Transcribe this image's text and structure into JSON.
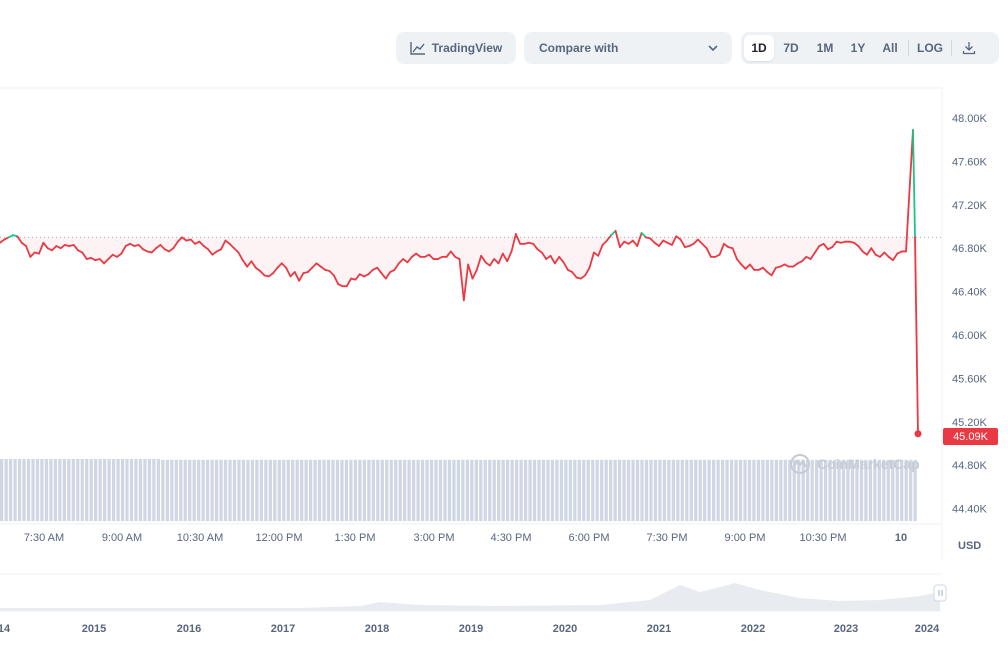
{
  "toolbar": {
    "tradingview_label": "TradingView",
    "compare_label": "Compare with",
    "ranges": [
      "1D",
      "7D",
      "1M",
      "1Y",
      "All"
    ],
    "active_range": "1D",
    "log_label": "LOG"
  },
  "watermark": "CoinMarketCap",
  "currency": "USD",
  "colors": {
    "up": "#16c784",
    "down": "#ea3943",
    "volume": "#cfd6e4",
    "grid": "#eff2f5"
  },
  "chart_data": {
    "type": "line",
    "title": "",
    "xlabel": "",
    "ylabel": "",
    "x_ticks": [
      "7:30 AM",
      "9:00 AM",
      "10:30 AM",
      "12:00 PM",
      "1:30 PM",
      "3:00 PM",
      "4:30 PM",
      "6:00 PM",
      "7:30 PM",
      "9:00 PM",
      "10:30 PM",
      "10"
    ],
    "y_ticks": [
      "48.00K",
      "47.60K",
      "47.20K",
      "46.80K",
      "46.40K",
      "46.00K",
      "45.60K",
      "45.20K",
      "44.80K",
      "44.40K"
    ],
    "ylim": [
      44.35,
      48.15
    ],
    "reference_price": 46.9,
    "current_price_label": "45.09K",
    "current_price": 45.09,
    "series": [
      {
        "values": [
          46.85,
          46.88,
          46.9,
          46.92,
          46.91,
          46.85,
          46.82,
          46.72,
          46.76,
          46.75,
          46.85,
          46.8,
          46.78,
          46.82,
          46.8,
          46.83,
          46.82,
          46.83,
          46.78,
          46.76,
          46.7,
          46.71,
          46.69,
          46.7,
          46.66,
          46.7,
          46.74,
          46.72,
          46.75,
          46.82,
          46.84,
          46.82,
          46.83,
          46.79,
          46.77,
          46.76,
          46.8,
          46.83,
          46.79,
          46.77,
          46.8,
          46.86,
          46.9,
          46.87,
          46.88,
          46.84,
          46.86,
          46.82,
          46.79,
          46.74,
          46.77,
          46.79,
          46.87,
          46.84,
          46.8,
          46.76,
          46.69,
          46.63,
          46.68,
          46.62,
          46.59,
          46.55,
          46.54,
          46.57,
          46.62,
          46.66,
          46.62,
          46.54,
          46.58,
          46.5,
          46.57,
          46.58,
          46.62,
          46.66,
          46.63,
          46.6,
          46.59,
          46.55,
          46.47,
          46.45,
          46.45,
          46.52,
          46.51,
          46.56,
          46.54,
          46.56,
          46.6,
          46.62,
          46.57,
          46.52,
          46.58,
          46.6,
          46.66,
          46.7,
          46.67,
          46.72,
          46.75,
          46.72,
          46.72,
          46.74,
          46.7,
          46.7,
          46.72,
          46.72,
          46.77,
          46.72,
          46.7,
          46.32,
          46.65,
          46.52,
          46.6,
          46.73,
          46.67,
          46.64,
          46.7,
          46.66,
          46.75,
          46.68,
          46.77,
          46.93,
          46.84,
          46.84,
          46.85,
          46.84,
          46.79,
          46.76,
          46.7,
          46.73,
          46.66,
          46.72,
          46.67,
          46.6,
          46.58,
          46.53,
          46.52,
          46.55,
          46.62,
          46.76,
          46.73,
          46.83,
          46.87,
          46.92,
          46.96,
          46.81,
          46.86,
          46.84,
          46.87,
          46.82,
          46.94,
          46.9,
          46.89,
          46.85,
          46.82,
          46.87,
          46.85,
          46.83,
          46.91,
          46.88,
          46.81,
          46.82,
          46.84,
          46.88,
          46.84,
          46.8,
          46.72,
          46.72,
          46.74,
          46.84,
          46.81,
          46.8,
          46.7,
          46.65,
          46.61,
          46.65,
          46.6,
          46.6,
          46.62,
          46.58,
          46.55,
          46.62,
          46.63,
          46.65,
          46.63,
          46.63,
          46.66,
          46.68,
          46.72,
          46.7,
          46.76,
          46.82,
          46.84,
          46.79,
          46.81,
          46.86,
          46.85,
          46.86,
          46.86,
          46.85,
          46.82,
          46.77,
          46.74,
          46.8,
          46.74,
          46.72,
          46.76,
          46.72,
          46.69,
          46.75,
          46.77,
          46.77
        ],
        "spike": [
          47.89,
          46.9,
          45.09
        ]
      }
    ],
    "volume_bars": [
      77,
      77,
      77,
      77,
      77,
      77,
      77,
      77,
      77,
      77,
      77,
      77,
      77,
      77,
      77,
      77,
      77,
      77,
      77,
      77,
      77,
      77,
      77,
      77,
      77,
      77,
      77,
      77,
      77,
      77,
      77,
      77,
      77,
      77,
      77,
      77,
      76,
      76,
      76,
      76,
      76,
      76,
      76,
      76,
      76,
      76,
      76,
      76,
      76,
      76,
      76,
      76,
      76,
      76,
      76,
      76,
      76,
      76,
      76,
      76,
      76,
      76,
      76,
      76,
      76,
      76,
      76,
      76,
      76,
      76,
      76,
      76,
      76,
      76,
      76,
      76,
      76,
      76,
      76,
      76,
      76,
      76,
      76,
      76,
      76,
      76,
      76,
      76,
      76,
      76,
      76,
      76,
      76,
      76,
      76,
      76,
      76,
      76,
      76,
      76,
      76,
      76,
      76,
      76,
      76,
      76,
      76,
      76,
      76,
      76,
      76,
      76,
      76,
      76,
      76,
      76,
      76,
      76,
      76,
      76,
      76,
      76,
      76,
      76,
      76,
      76,
      76,
      76,
      76,
      76,
      76,
      76,
      76,
      76,
      76,
      76,
      76,
      76,
      76,
      76,
      76,
      76,
      76,
      76,
      76,
      76,
      76,
      76,
      76,
      76,
      76,
      76,
      76,
      76,
      76,
      76,
      76,
      76,
      76,
      76,
      76,
      76,
      76,
      76,
      76,
      76,
      76,
      76,
      76,
      76,
      76,
      76,
      76,
      76,
      76,
      76,
      76,
      76,
      76,
      76,
      76,
      76,
      76,
      76,
      76,
      76,
      76,
      76,
      76,
      76,
      76,
      76,
      76,
      76,
      76,
      76,
      76,
      76,
      76,
      76,
      76,
      76,
      76,
      76,
      76
    ],
    "navigator_ticks": [
      "14",
      "2015",
      "2016",
      "2017",
      "2018",
      "2019",
      "2020",
      "2021",
      "2022",
      "2023",
      "2024"
    ]
  }
}
